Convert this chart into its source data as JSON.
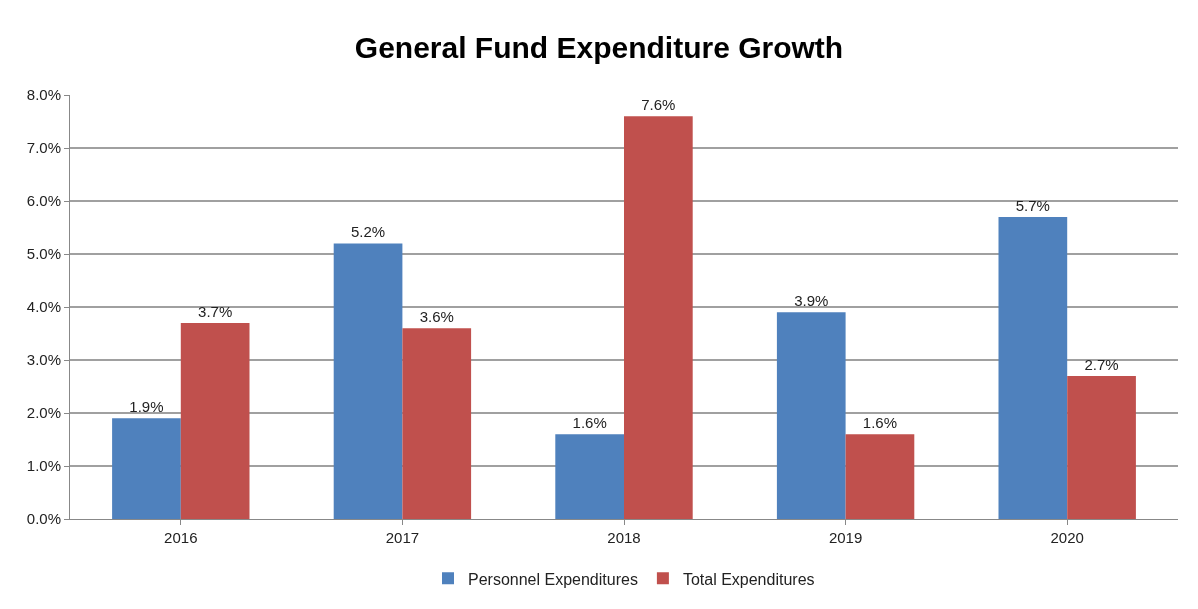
{
  "chart_data": {
    "type": "bar",
    "title": "General Fund Expenditure Growth",
    "categories": [
      "2016",
      "2017",
      "2018",
      "2019",
      "2020"
    ],
    "series": [
      {
        "name": "Personnel Expenditures",
        "color": "#4f81bd",
        "values": [
          1.9,
          5.2,
          1.6,
          3.9,
          5.7
        ],
        "value_labels": [
          "1.9%",
          "5.2%",
          "1.6%",
          "3.9%",
          "5.7%"
        ]
      },
      {
        "name": "Total Expenditures",
        "color": "#c0504d",
        "values": [
          3.7,
          3.6,
          7.6,
          1.6,
          2.7
        ],
        "value_labels": [
          "3.7%",
          "3.6%",
          "7.6%",
          "1.6%",
          "2.7%"
        ]
      }
    ],
    "ylim": [
      0,
      8
    ],
    "yticks": [
      {
        "value": 0,
        "label": "0.0%"
      },
      {
        "value": 1,
        "label": "1.0%"
      },
      {
        "value": 2,
        "label": "2.0%"
      },
      {
        "value": 3,
        "label": "3.0%"
      },
      {
        "value": 4,
        "label": "4.0%"
      },
      {
        "value": 5,
        "label": "5.0%"
      },
      {
        "value": 6,
        "label": "6.0%"
      },
      {
        "value": 7,
        "label": "7.0%"
      },
      {
        "value": 8,
        "label": "8.0%"
      }
    ],
    "grid": "y",
    "legend": "bottom"
  }
}
